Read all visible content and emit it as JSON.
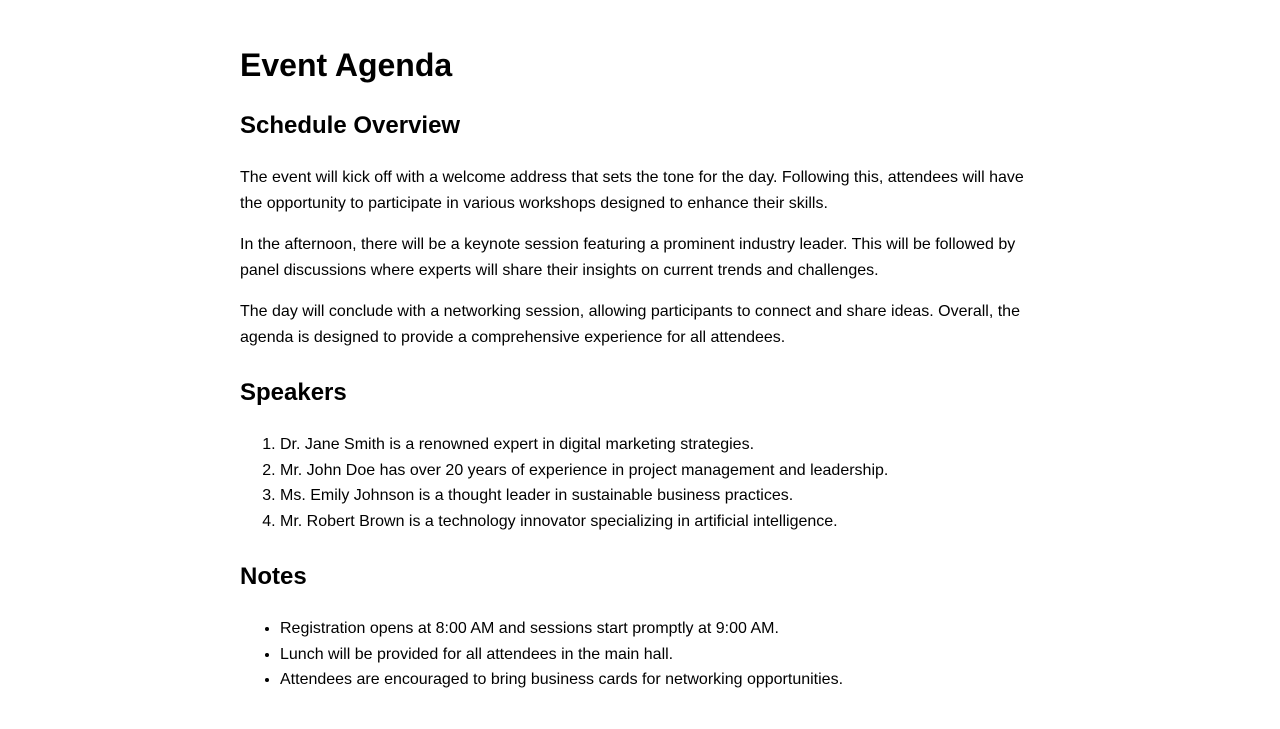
{
  "title": "Event Agenda",
  "schedule": {
    "heading": "Schedule Overview",
    "paragraphs": [
      "The event will kick off with a welcome address that sets the tone for the day. Following this, attendees will have the opportunity to participate in various workshops designed to enhance their skills.",
      "In the afternoon, there will be a keynote session featuring a prominent industry leader. This will be followed by panel discussions where experts will share their insights on current trends and challenges.",
      "The day will conclude with a networking session, allowing participants to connect and share ideas. Overall, the agenda is designed to provide a comprehensive experience for all attendees."
    ]
  },
  "speakers": {
    "heading": "Speakers",
    "items": [
      "Dr. Jane Smith is a renowned expert in digital marketing strategies.",
      "Mr. John Doe has over 20 years of experience in project management and leadership.",
      "Ms. Emily Johnson is a thought leader in sustainable business practices.",
      "Mr. Robert Brown is a technology innovator specializing in artificial intelligence."
    ]
  },
  "notes": {
    "heading": "Notes",
    "items": [
      "Registration opens at 8:00 AM and sessions start promptly at 9:00 AM.",
      "Lunch will be provided for all attendees in the main hall.",
      "Attendees are encouraged to bring business cards for networking opportunities."
    ]
  }
}
